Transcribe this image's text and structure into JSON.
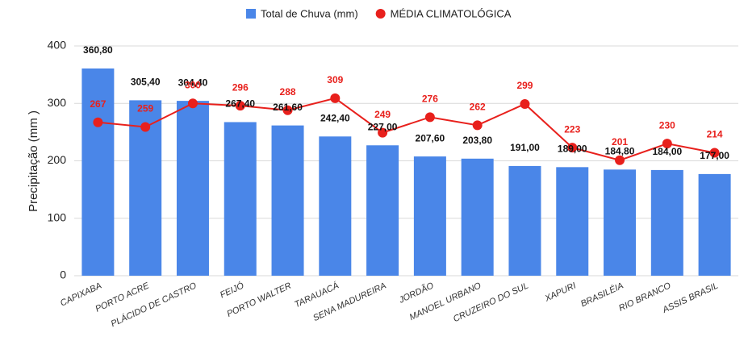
{
  "chart_data": {
    "type": "combo",
    "ylabel": "Precipitação (mm )",
    "categories": [
      "CAPIXABA",
      "PORTO ACRE",
      "PLÁCIDO DE CASTRO",
      "FEIJÓ",
      "PORTO WALTER",
      "TARAUACÁ",
      "SENA MADUREIRA",
      "JORDÃO",
      "MANOEL URBANO",
      "CRUZEIRO DO SUL",
      "XAPURI",
      "BRASILÉIA",
      "RIO BRANCO",
      "ASSIS BRASIL"
    ],
    "series": [
      {
        "name": "Total de Chuva (mm)",
        "type": "bar",
        "color": "#4a86e8",
        "values": [
          360.8,
          305.4,
          304.4,
          267.4,
          261.6,
          242.4,
          227.0,
          207.6,
          203.8,
          191.0,
          189.0,
          184.8,
          184.0,
          177.0
        ],
        "value_labels": [
          "360,80",
          "305,40",
          "304,40",
          "267,40",
          "261,60",
          "242,40",
          "227,00",
          "207,60",
          "203,80",
          "191,00",
          "189,00",
          "184,80",
          "184,00",
          "177,00"
        ]
      },
      {
        "name": "MÉDIA CLIMATOLÓGICA",
        "type": "line",
        "color": "#e8201c",
        "values": [
          267,
          259,
          300,
          296,
          288,
          309,
          249,
          276,
          262,
          299,
          223,
          201,
          230,
          214
        ]
      }
    ],
    "ylim": [
      0,
      400
    ],
    "yticks": [
      0,
      100,
      200,
      300,
      400
    ],
    "grid": true
  }
}
